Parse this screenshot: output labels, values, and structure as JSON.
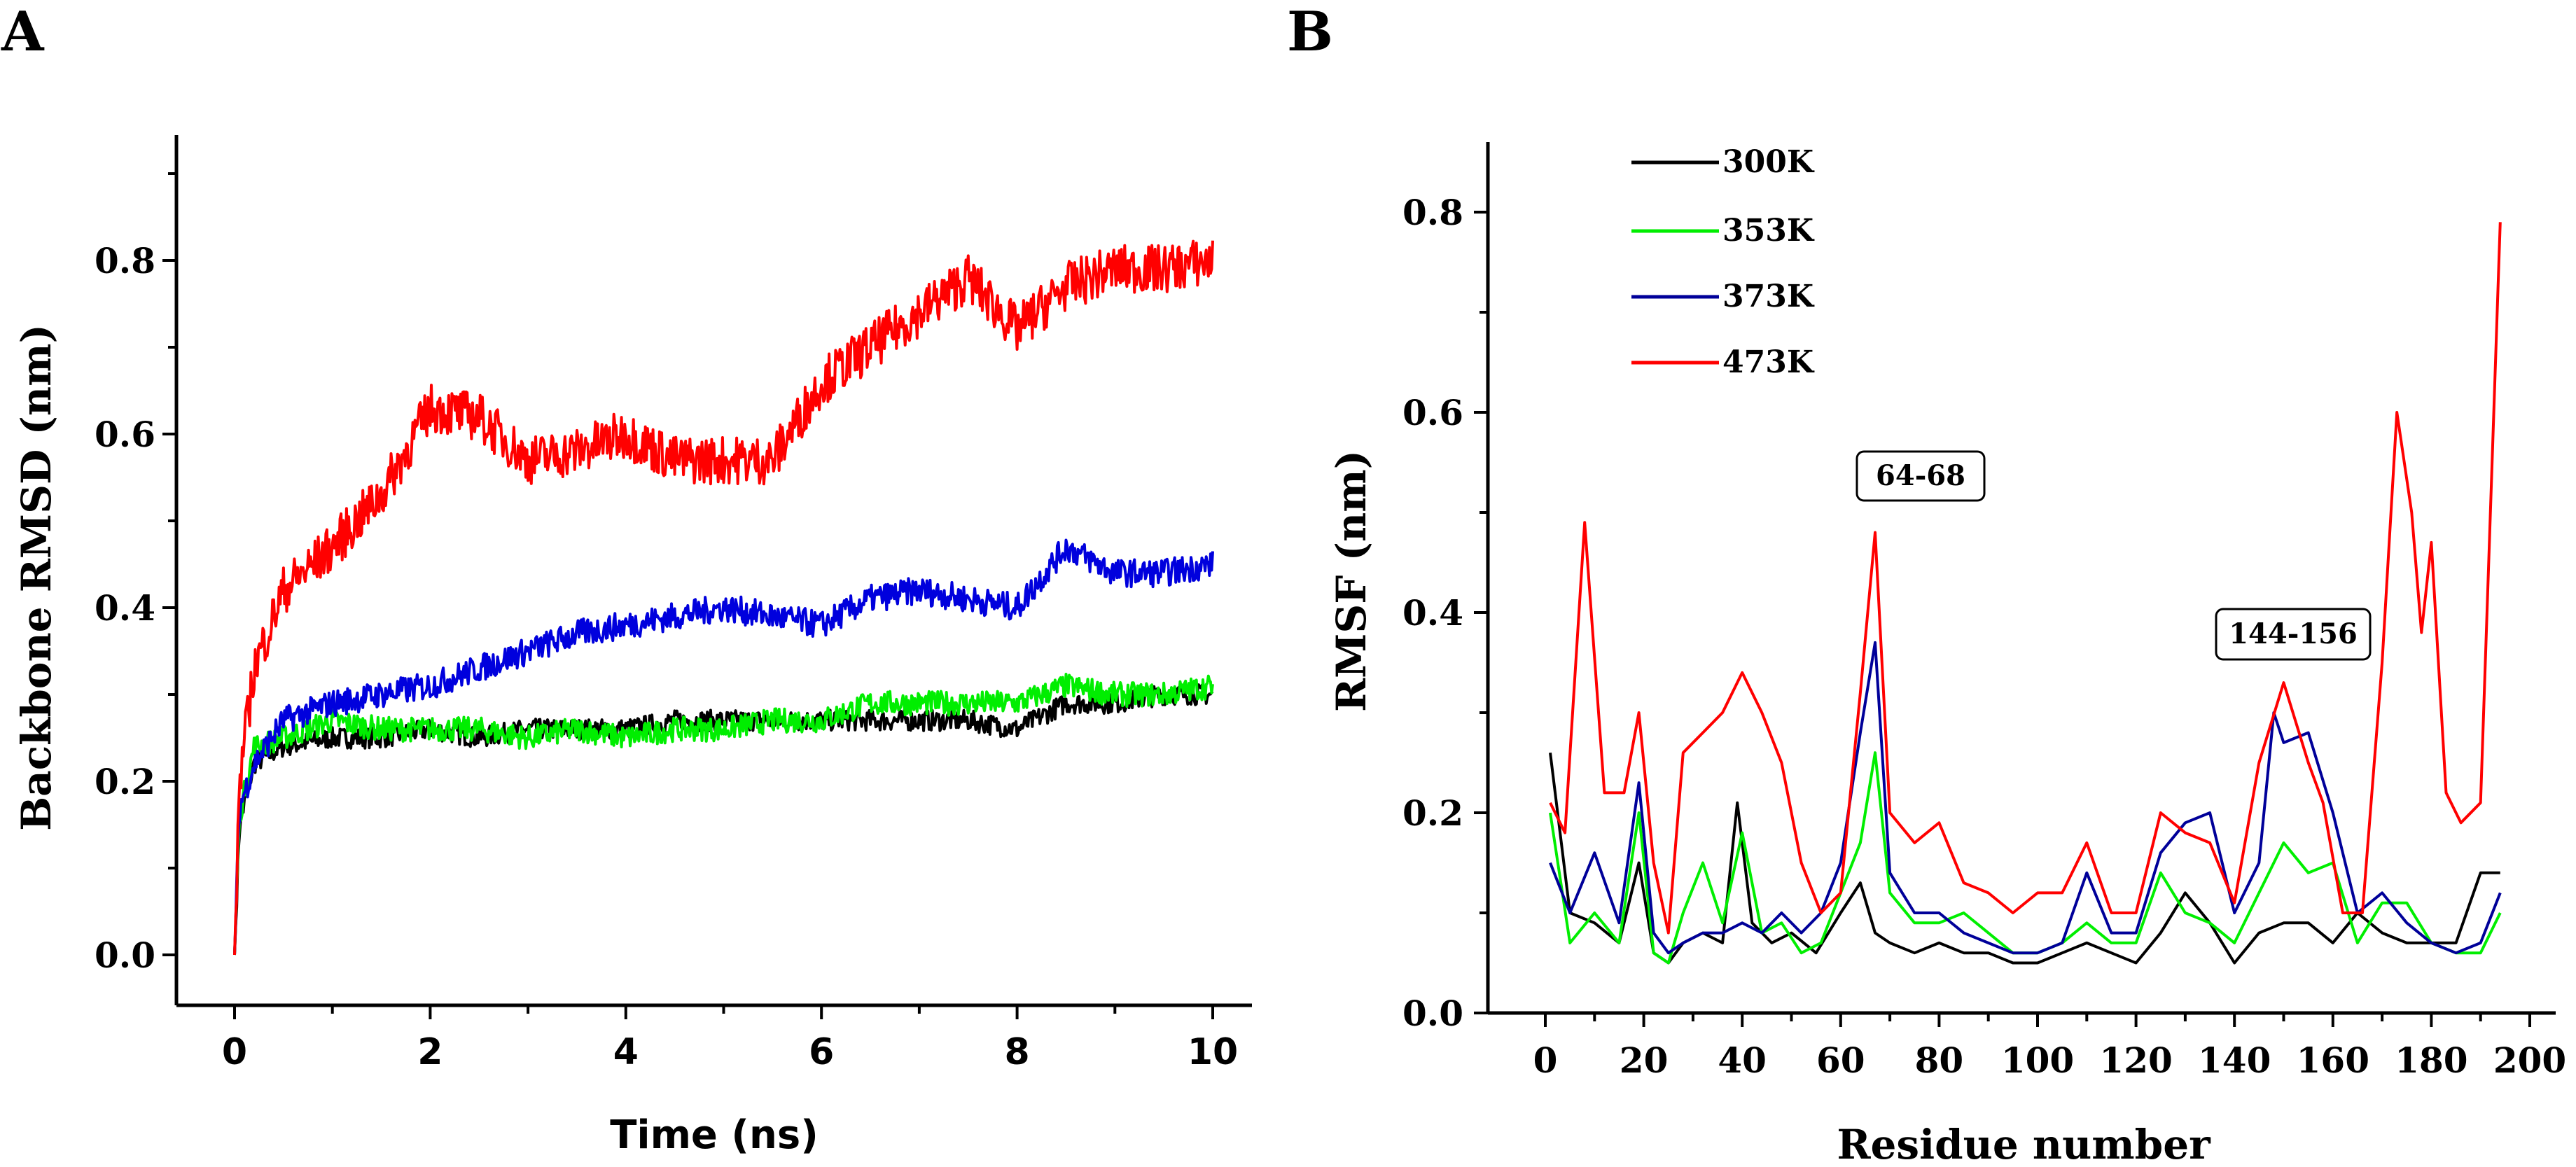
{
  "panels": {
    "a": "A",
    "b": "B"
  },
  "chart_data": [
    {
      "type": "line",
      "panel": "A",
      "xlabel": "Time (ns)",
      "ylabel": "Backbone RMSD (nm)",
      "xlim": [
        0,
        10
      ],
      "ylim": [
        0,
        0.9
      ],
      "xticks": [
        "0",
        "2",
        "4",
        "6",
        "8",
        "10"
      ],
      "yticks": [
        "0.0",
        "0.2",
        "0.4",
        "0.6",
        "0.8"
      ],
      "series": [
        {
          "color": "#000000",
          "x": [
            0,
            0.05,
            0.2,
            0.5,
            1,
            1.5,
            2,
            2.5,
            3,
            3.5,
            4,
            4.5,
            5,
            5.5,
            6,
            6.5,
            7,
            7.5,
            8,
            8.5,
            9,
            9.5,
            10
          ],
          "y": [
            0.0,
            0.15,
            0.22,
            0.24,
            0.25,
            0.25,
            0.26,
            0.25,
            0.26,
            0.26,
            0.26,
            0.27,
            0.27,
            0.27,
            0.27,
            0.27,
            0.27,
            0.27,
            0.26,
            0.29,
            0.29,
            0.3,
            0.3
          ]
        },
        {
          "color": "#00ee00",
          "x": [
            0,
            0.05,
            0.2,
            0.5,
            1,
            1.5,
            2,
            2.5,
            3,
            3.5,
            4,
            4.5,
            5,
            5.5,
            6,
            6.5,
            7,
            7.5,
            8,
            8.5,
            9,
            9.5,
            10
          ],
          "y": [
            0.0,
            0.16,
            0.24,
            0.25,
            0.27,
            0.26,
            0.26,
            0.26,
            0.25,
            0.26,
            0.25,
            0.26,
            0.26,
            0.27,
            0.27,
            0.29,
            0.29,
            0.29,
            0.29,
            0.31,
            0.3,
            0.3,
            0.31
          ]
        },
        {
          "color": "#0000dd",
          "x": [
            0,
            0.05,
            0.2,
            0.5,
            1,
            1.5,
            2,
            2.5,
            3,
            3.5,
            4,
            4.5,
            5,
            5.5,
            6,
            6.5,
            7,
            7.5,
            8,
            8.5,
            9,
            9.5,
            10
          ],
          "y": [
            0.0,
            0.17,
            0.22,
            0.27,
            0.29,
            0.3,
            0.31,
            0.33,
            0.35,
            0.37,
            0.38,
            0.39,
            0.4,
            0.39,
            0.38,
            0.41,
            0.42,
            0.41,
            0.4,
            0.47,
            0.44,
            0.44,
            0.45
          ]
        },
        {
          "color": "#ff0000",
          "x": [
            0,
            0.05,
            0.2,
            0.5,
            1,
            1.5,
            2,
            2.5,
            3,
            3.5,
            4,
            4.5,
            5,
            5.5,
            6,
            6.5,
            7,
            7.5,
            8,
            8.5,
            9,
            9.5,
            10
          ],
          "y": [
            0.0,
            0.2,
            0.33,
            0.42,
            0.47,
            0.53,
            0.63,
            0.62,
            0.57,
            0.58,
            0.6,
            0.57,
            0.57,
            0.57,
            0.66,
            0.7,
            0.74,
            0.78,
            0.72,
            0.77,
            0.79,
            0.79,
            0.8
          ]
        }
      ]
    },
    {
      "type": "line",
      "panel": "B",
      "xlabel": "Residue number",
      "ylabel": "RMSF (nm)",
      "xlim": [
        -8,
        210
      ],
      "ylim": [
        0,
        0.88
      ],
      "xticks": [
        "0",
        "20",
        "40",
        "60",
        "80",
        "100",
        "120",
        "140",
        "160",
        "180",
        "200"
      ],
      "yticks": [
        "0.0",
        "0.2",
        "0.4",
        "0.6",
        "0.8"
      ],
      "legend": {
        "position": "top-left",
        "entries": [
          "300K",
          "353K",
          "373K",
          "473K"
        ]
      },
      "annotations": [
        {
          "text": "64-68"
        },
        {
          "text": "144-156"
        }
      ],
      "series": [
        {
          "name": "300K",
          "color": "#000000",
          "x": [
            1,
            5,
            10,
            15,
            19,
            22,
            25,
            28,
            32,
            36,
            39,
            42,
            46,
            50,
            55,
            60,
            64,
            67,
            70,
            75,
            80,
            85,
            90,
            95,
            100,
            105,
            110,
            115,
            120,
            125,
            130,
            135,
            140,
            145,
            150,
            155,
            160,
            165,
            170,
            175,
            180,
            185,
            190,
            194
          ],
          "y": [
            0.26,
            0.1,
            0.09,
            0.07,
            0.15,
            0.06,
            0.05,
            0.07,
            0.08,
            0.07,
            0.21,
            0.09,
            0.07,
            0.08,
            0.06,
            0.1,
            0.13,
            0.08,
            0.07,
            0.06,
            0.07,
            0.06,
            0.06,
            0.05,
            0.05,
            0.06,
            0.07,
            0.06,
            0.05,
            0.08,
            0.12,
            0.09,
            0.05,
            0.08,
            0.09,
            0.09,
            0.07,
            0.1,
            0.08,
            0.07,
            0.07,
            0.07,
            0.14,
            0.14
          ]
        },
        {
          "name": "353K",
          "color": "#00ee00",
          "x": [
            1,
            5,
            10,
            15,
            19,
            22,
            25,
            28,
            32,
            36,
            40,
            44,
            48,
            52,
            56,
            60,
            64,
            67,
            70,
            75,
            80,
            85,
            90,
            95,
            100,
            105,
            110,
            115,
            120,
            125,
            130,
            135,
            140,
            145,
            150,
            155,
            160,
            165,
            170,
            175,
            180,
            185,
            190,
            194
          ],
          "y": [
            0.2,
            0.07,
            0.1,
            0.07,
            0.2,
            0.06,
            0.05,
            0.1,
            0.15,
            0.09,
            0.18,
            0.08,
            0.09,
            0.06,
            0.07,
            0.12,
            0.17,
            0.26,
            0.12,
            0.09,
            0.09,
            0.1,
            0.08,
            0.06,
            0.06,
            0.07,
            0.09,
            0.07,
            0.07,
            0.14,
            0.1,
            0.09,
            0.07,
            0.12,
            0.17,
            0.14,
            0.15,
            0.07,
            0.11,
            0.11,
            0.07,
            0.06,
            0.06,
            0.1
          ]
        },
        {
          "name": "373K",
          "color": "#000099",
          "x": [
            1,
            5,
            10,
            15,
            19,
            22,
            25,
            28,
            32,
            36,
            40,
            44,
            48,
            52,
            56,
            60,
            64,
            67,
            70,
            75,
            80,
            85,
            90,
            95,
            100,
            105,
            110,
            115,
            120,
            125,
            130,
            135,
            140,
            145,
            148,
            150,
            155,
            160,
            165,
            170,
            175,
            180,
            185,
            190,
            194
          ],
          "y": [
            0.15,
            0.1,
            0.16,
            0.09,
            0.23,
            0.08,
            0.06,
            0.07,
            0.08,
            0.08,
            0.09,
            0.08,
            0.1,
            0.08,
            0.1,
            0.15,
            0.28,
            0.37,
            0.14,
            0.1,
            0.1,
            0.08,
            0.07,
            0.06,
            0.06,
            0.07,
            0.14,
            0.08,
            0.08,
            0.16,
            0.19,
            0.2,
            0.1,
            0.15,
            0.3,
            0.27,
            0.28,
            0.2,
            0.1,
            0.12,
            0.09,
            0.07,
            0.06,
            0.07,
            0.12
          ]
        },
        {
          "name": "473K",
          "color": "#ff0000",
          "x": [
            1,
            4,
            8,
            12,
            16,
            19,
            22,
            25,
            28,
            32,
            36,
            40,
            44,
            48,
            52,
            56,
            60,
            64,
            67,
            70,
            75,
            80,
            85,
            90,
            95,
            100,
            105,
            110,
            115,
            120,
            125,
            130,
            135,
            140,
            145,
            150,
            155,
            158,
            162,
            166,
            170,
            173,
            176,
            178,
            180,
            183,
            186,
            190,
            194
          ],
          "y": [
            0.21,
            0.18,
            0.49,
            0.22,
            0.22,
            0.3,
            0.15,
            0.08,
            0.26,
            0.28,
            0.3,
            0.34,
            0.3,
            0.25,
            0.15,
            0.1,
            0.12,
            0.32,
            0.48,
            0.2,
            0.17,
            0.19,
            0.13,
            0.12,
            0.1,
            0.12,
            0.12,
            0.17,
            0.1,
            0.1,
            0.2,
            0.18,
            0.17,
            0.11,
            0.25,
            0.33,
            0.25,
            0.21,
            0.1,
            0.1,
            0.35,
            0.6,
            0.5,
            0.38,
            0.47,
            0.22,
            0.19,
            0.21,
            0.79
          ]
        }
      ]
    }
  ]
}
